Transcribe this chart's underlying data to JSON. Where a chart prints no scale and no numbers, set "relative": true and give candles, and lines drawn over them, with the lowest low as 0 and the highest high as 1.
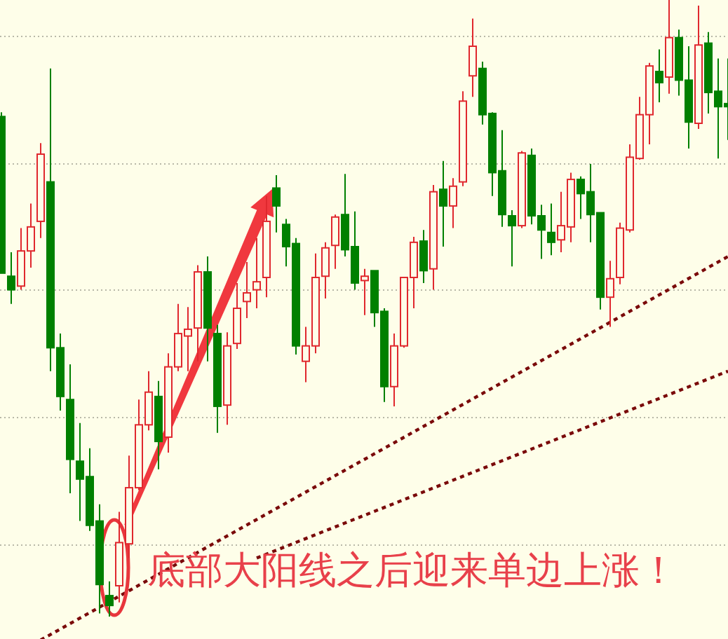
{
  "chart_data": {
    "type": "candlestick",
    "relative": true,
    "grid": "y",
    "categories": [
      null,
      null,
      null,
      null,
      null,
      null,
      null,
      null,
      null,
      null,
      null,
      null,
      null,
      null,
      null,
      null,
      null,
      null,
      null,
      null,
      null,
      null,
      null,
      null,
      null,
      null,
      null,
      null,
      null,
      null,
      null,
      null,
      null,
      null,
      null,
      null,
      null,
      null,
      null,
      null,
      null,
      null,
      null,
      null,
      null,
      null,
      null,
      null,
      null,
      null,
      null,
      null,
      null,
      null,
      null,
      null,
      null,
      null,
      null,
      null,
      null,
      null,
      null,
      null,
      null,
      null,
      null,
      null,
      null,
      null,
      null,
      null,
      null,
      null,
      null
    ],
    "ohlc": [
      [
        0.811,
        0.818,
        0.557,
        0.557
      ],
      [
        0.552,
        0.591,
        0.507,
        0.53
      ],
      [
        0.536,
        0.63,
        0.53,
        0.593
      ],
      [
        0.593,
        0.67,
        0.566,
        0.632
      ],
      [
        0.641,
        0.768,
        0.614,
        0.75
      ],
      [
        0.705,
        0.889,
        0.398,
        0.436
      ],
      [
        0.436,
        0.459,
        0.334,
        0.357
      ],
      [
        0.352,
        0.409,
        0.2,
        0.255
      ],
      [
        0.252,
        0.314,
        0.155,
        0.223
      ],
      [
        0.227,
        0.273,
        0.139,
        0.148
      ],
      [
        0.155,
        0.182,
        0.005,
        0.052
      ],
      [
        0.034,
        0.057,
        0.0,
        0.018
      ],
      [
        0.05,
        0.17,
        0.023,
        0.12
      ],
      [
        0.118,
        0.261,
        0.095,
        0.209
      ],
      [
        0.209,
        0.352,
        0.205,
        0.311
      ],
      [
        0.311,
        0.398,
        0.302,
        0.364
      ],
      [
        0.357,
        0.382,
        0.239,
        0.284
      ],
      [
        0.291,
        0.427,
        0.266,
        0.405
      ],
      [
        0.405,
        0.507,
        0.398,
        0.459
      ],
      [
        0.455,
        0.502,
        0.398,
        0.466
      ],
      [
        0.468,
        0.57,
        0.414,
        0.559
      ],
      [
        0.559,
        0.584,
        0.414,
        0.468
      ],
      [
        0.459,
        0.473,
        0.298,
        0.341
      ],
      [
        0.343,
        0.461,
        0.311,
        0.439
      ],
      [
        0.443,
        0.541,
        0.434,
        0.5
      ],
      [
        0.511,
        0.575,
        0.484,
        0.525
      ],
      [
        0.53,
        0.614,
        0.5,
        0.543
      ],
      [
        0.55,
        0.682,
        0.518,
        0.641
      ],
      [
        0.695,
        0.716,
        0.623,
        0.666
      ],
      [
        0.636,
        0.645,
        0.568,
        0.6
      ],
      [
        0.605,
        0.614,
        0.425,
        0.439
      ],
      [
        0.414,
        0.47,
        0.38,
        0.439
      ],
      [
        0.439,
        0.589,
        0.427,
        0.55
      ],
      [
        0.552,
        0.607,
        0.516,
        0.598
      ],
      [
        0.602,
        0.652,
        0.564,
        0.648
      ],
      [
        0.652,
        0.718,
        0.584,
        0.595
      ],
      [
        0.6,
        0.657,
        0.53,
        0.541
      ],
      [
        0.545,
        0.564,
        0.489,
        0.552
      ],
      [
        0.561,
        0.561,
        0.47,
        0.493
      ],
      [
        0.495,
        0.5,
        0.348,
        0.373
      ],
      [
        0.373,
        0.459,
        0.341,
        0.439
      ],
      [
        0.439,
        0.55,
        0.436,
        0.55
      ],
      [
        0.55,
        0.616,
        0.5,
        0.607
      ],
      [
        0.609,
        0.627,
        0.541,
        0.561
      ],
      [
        0.564,
        0.7,
        0.53,
        0.689
      ],
      [
        0.693,
        0.739,
        0.6,
        0.666
      ],
      [
        0.666,
        0.711,
        0.63,
        0.698
      ],
      [
        0.705,
        0.852,
        0.698,
        0.836
      ],
      [
        0.877,
        0.97,
        0.843,
        0.925
      ],
      [
        0.889,
        0.9,
        0.798,
        0.814
      ],
      [
        0.816,
        0.818,
        0.682,
        0.72
      ],
      [
        0.723,
        0.789,
        0.632,
        0.652
      ],
      [
        0.65,
        0.659,
        0.568,
        0.634
      ],
      [
        0.634,
        0.755,
        0.63,
        0.752
      ],
      [
        0.748,
        0.759,
        0.636,
        0.65
      ],
      [
        0.65,
        0.668,
        0.58,
        0.627
      ],
      [
        0.623,
        0.67,
        0.586,
        0.607
      ],
      [
        0.611,
        0.689,
        0.591,
        0.634
      ],
      [
        0.632,
        0.72,
        0.607,
        0.709
      ],
      [
        0.709,
        0.714,
        0.645,
        0.686
      ],
      [
        0.689,
        0.734,
        0.607,
        0.652
      ],
      [
        0.655,
        0.655,
        0.498,
        0.518
      ],
      [
        0.518,
        0.577,
        0.47,
        0.548
      ],
      [
        0.55,
        0.639,
        0.539,
        0.63
      ],
      [
        0.627,
        0.766,
        0.623,
        0.745
      ],
      [
        0.743,
        0.843,
        0.741,
        0.814
      ],
      [
        0.814,
        0.898,
        0.766,
        0.893
      ],
      [
        0.884,
        0.92,
        0.834,
        0.866
      ],
      [
        0.875,
        1.0,
        0.848,
        0.939
      ],
      [
        0.939,
        0.952,
        0.845,
        0.87
      ],
      [
        0.87,
        0.925,
        0.759,
        0.802
      ],
      [
        0.8,
        0.991,
        0.791,
        0.927
      ],
      [
        0.93,
        0.948,
        0.816,
        0.85
      ],
      [
        0.852,
        0.905,
        0.743,
        0.827
      ],
      [
        0.832,
        0.905,
        0.773,
        0.827
      ]
    ],
    "colors": [
      "#008000",
      "#008000",
      "#e0282e",
      "#e0282e",
      "#e0282e",
      "#008000",
      "#008000",
      "#008000",
      "#008000",
      "#008000",
      "#008000",
      "#008000",
      "#e0282e",
      "#e0282e",
      "#e0282e",
      "#e0282e",
      "#008000",
      "#e0282e",
      "#e0282e",
      "#e0282e",
      "#e0282e",
      "#008000",
      "#008000",
      "#e0282e",
      "#e0282e",
      "#e0282e",
      "#e0282e",
      "#e0282e",
      "#008000",
      "#008000",
      "#008000",
      "#e0282e",
      "#e0282e",
      "#e0282e",
      "#e0282e",
      "#008000",
      "#008000",
      "#e0282e",
      "#008000",
      "#008000",
      "#e0282e",
      "#e0282e",
      "#e0282e",
      "#008000",
      "#e0282e",
      "#008000",
      "#e0282e",
      "#e0282e",
      "#e0282e",
      "#008000",
      "#008000",
      "#008000",
      "#008000",
      "#e0282e",
      "#008000",
      "#008000",
      "#008000",
      "#e0282e",
      "#e0282e",
      "#008000",
      "#008000",
      "#008000",
      "#e0282e",
      "#e0282e",
      "#e0282e",
      "#e0282e",
      "#e0282e",
      "#008000",
      "#e0282e",
      "#008000",
      "#008000",
      "#e0282e",
      "#008000",
      "#008000",
      "#008000"
    ],
    "series": [
      {
        "type": "line",
        "values": [
          null,
          null,
          null,
          null,
          -0.038,
          null,
          null,
          null,
          null,
          null,
          null,
          null,
          null,
          null,
          null,
          null,
          null,
          null,
          null,
          null,
          null,
          null,
          null,
          null,
          null,
          null,
          null,
          null,
          null,
          null,
          null,
          null,
          null,
          null,
          null,
          null,
          null,
          null,
          null,
          null,
          null,
          null,
          null,
          null,
          null,
          null,
          null,
          null,
          null,
          null,
          null,
          null,
          null,
          null,
          null,
          null,
          null,
          null,
          null,
          null,
          null,
          null,
          null,
          null,
          null,
          null,
          null,
          null,
          null,
          null,
          null,
          null,
          null,
          null,
          0.584
        ],
        "color": "#7a0a0a",
        "line_style": "dotted"
      },
      {
        "type": "line",
        "values": [
          null,
          null,
          null,
          null,
          null,
          null,
          null,
          null,
          null,
          null,
          null,
          null,
          null,
          null,
          null,
          null,
          null,
          null,
          null,
          null,
          null,
          null,
          null,
          null,
          null,
          null,
          0.095,
          null,
          null,
          null,
          null,
          null,
          null,
          null,
          null,
          null,
          null,
          null,
          null,
          null,
          null,
          null,
          null,
          null,
          null,
          null,
          null,
          null,
          null,
          null,
          null,
          null,
          null,
          null,
          null,
          null,
          null,
          null,
          null,
          null,
          null,
          null,
          null,
          null,
          null,
          null,
          null,
          null,
          null,
          null,
          null,
          null,
          null,
          null,
          0.398
        ],
        "color": "#7a0a0a",
        "line_style": "dotted"
      }
    ],
    "annotations": [
      "底部大阳线之后迎来单边上涨！"
    ]
  }
}
